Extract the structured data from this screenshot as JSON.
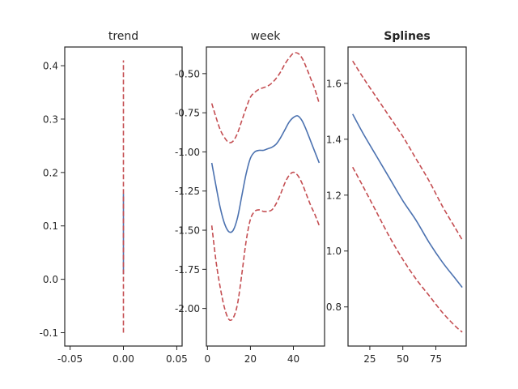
{
  "colors": {
    "fit": "#4c72b0",
    "band": "#c44e52",
    "frame": "#262626"
  },
  "chart_data": [
    {
      "type": "line",
      "title": "trend",
      "title_bold": false,
      "xlabel": "",
      "ylabel": "",
      "xlim": [
        -0.055,
        0.055
      ],
      "ylim": [
        -0.125,
        0.435
      ],
      "xticks": [
        -0.05,
        0.0,
        0.05
      ],
      "xtick_labels": [
        "-0.05",
        "0.00",
        "0.05"
      ],
      "yticks": [
        -0.1,
        0.0,
        0.1,
        0.2,
        0.3,
        0.4
      ],
      "ytick_labels": [
        "-0.1",
        "0.0",
        "0.1",
        "0.2",
        "0.3",
        "0.4"
      ],
      "series": [
        {
          "role": "fit",
          "x": [
            0,
            0
          ],
          "y": [
            0.01,
            0.16
          ]
        },
        {
          "role": "upper",
          "x": [
            0,
            0
          ],
          "y": [
            0.16,
            0.41
          ]
        },
        {
          "role": "lower",
          "x": [
            0,
            0
          ],
          "y": [
            -0.1,
            0.16
          ]
        }
      ]
    },
    {
      "type": "line",
      "title": "week",
      "title_bold": false,
      "xlabel": "",
      "ylabel": "",
      "xlim": [
        -0.5,
        54.5
      ],
      "ylim": [
        -2.24,
        -0.33
      ],
      "xticks": [
        0,
        20,
        40
      ],
      "xtick_labels": [
        "0",
        "20",
        "40"
      ],
      "yticks": [
        -2.0,
        -1.75,
        -1.5,
        -1.25,
        -1.0,
        -0.75,
        -0.5
      ],
      "ytick_labels": [
        "-2.00",
        "-1.75",
        "-1.50",
        "-1.25",
        "-1.00",
        "-0.75",
        "-0.50"
      ],
      "series": [
        {
          "role": "fit",
          "x": [
            2,
            4,
            6,
            8,
            10,
            12,
            14,
            16,
            18,
            20,
            22,
            24,
            26,
            28,
            30,
            32,
            34,
            36,
            38,
            40,
            42,
            44,
            46,
            48,
            50,
            52
          ],
          "y": [
            -1.07,
            -1.22,
            -1.36,
            -1.46,
            -1.51,
            -1.5,
            -1.42,
            -1.28,
            -1.14,
            -1.04,
            -1.0,
            -0.99,
            -0.99,
            -0.98,
            -0.97,
            -0.95,
            -0.91,
            -0.86,
            -0.81,
            -0.78,
            -0.77,
            -0.8,
            -0.86,
            -0.93,
            -1.0,
            -1.07
          ]
        },
        {
          "role": "upper",
          "x": [
            2,
            4,
            6,
            8,
            10,
            12,
            14,
            16,
            18,
            20,
            22,
            24,
            26,
            28,
            30,
            32,
            34,
            36,
            38,
            40,
            42,
            44,
            46,
            48,
            50,
            52
          ],
          "y": [
            -0.69,
            -0.78,
            -0.86,
            -0.91,
            -0.94,
            -0.93,
            -0.88,
            -0.8,
            -0.72,
            -0.65,
            -0.62,
            -0.6,
            -0.59,
            -0.58,
            -0.56,
            -0.53,
            -0.49,
            -0.44,
            -0.4,
            -0.37,
            -0.37,
            -0.4,
            -0.46,
            -0.53,
            -0.6,
            -0.69
          ]
        },
        {
          "role": "lower",
          "x": [
            2,
            4,
            6,
            8,
            10,
            12,
            14,
            16,
            18,
            20,
            22,
            24,
            26,
            28,
            30,
            32,
            34,
            36,
            38,
            40,
            42,
            44,
            46,
            48,
            50,
            52
          ],
          "y": [
            -1.47,
            -1.7,
            -1.87,
            -2.0,
            -2.07,
            -2.06,
            -1.97,
            -1.78,
            -1.57,
            -1.43,
            -1.38,
            -1.37,
            -1.38,
            -1.38,
            -1.37,
            -1.33,
            -1.27,
            -1.2,
            -1.15,
            -1.13,
            -1.15,
            -1.2,
            -1.27,
            -1.34,
            -1.4,
            -1.47
          ]
        }
      ]
    },
    {
      "type": "line",
      "title": "Splines",
      "title_bold": true,
      "xlabel": "",
      "ylabel": "",
      "xlim": [
        8.5,
        98
      ],
      "ylim": [
        0.66,
        1.73
      ],
      "xticks": [
        25,
        50,
        75
      ],
      "xtick_labels": [
        "25",
        "50",
        "75"
      ],
      "yticks": [
        0.8,
        1.0,
        1.2,
        1.4,
        1.6
      ],
      "ytick_labels": [
        "0.8",
        "1.0",
        "1.2",
        "1.4",
        "1.6"
      ],
      "series": [
        {
          "role": "fit",
          "x": [
            12,
            20,
            30,
            40,
            50,
            60,
            70,
            80,
            90,
            95
          ],
          "y": [
            1.49,
            1.42,
            1.34,
            1.26,
            1.18,
            1.11,
            1.03,
            0.96,
            0.9,
            0.87
          ]
        },
        {
          "role": "upper",
          "x": [
            12,
            20,
            30,
            40,
            50,
            60,
            70,
            80,
            90,
            95
          ],
          "y": [
            1.68,
            1.62,
            1.55,
            1.48,
            1.41,
            1.33,
            1.25,
            1.16,
            1.08,
            1.04
          ]
        },
        {
          "role": "lower",
          "x": [
            12,
            20,
            30,
            40,
            50,
            60,
            70,
            80,
            90,
            95
          ],
          "y": [
            1.3,
            1.23,
            1.14,
            1.05,
            0.97,
            0.9,
            0.84,
            0.78,
            0.73,
            0.71
          ]
        }
      ]
    }
  ]
}
